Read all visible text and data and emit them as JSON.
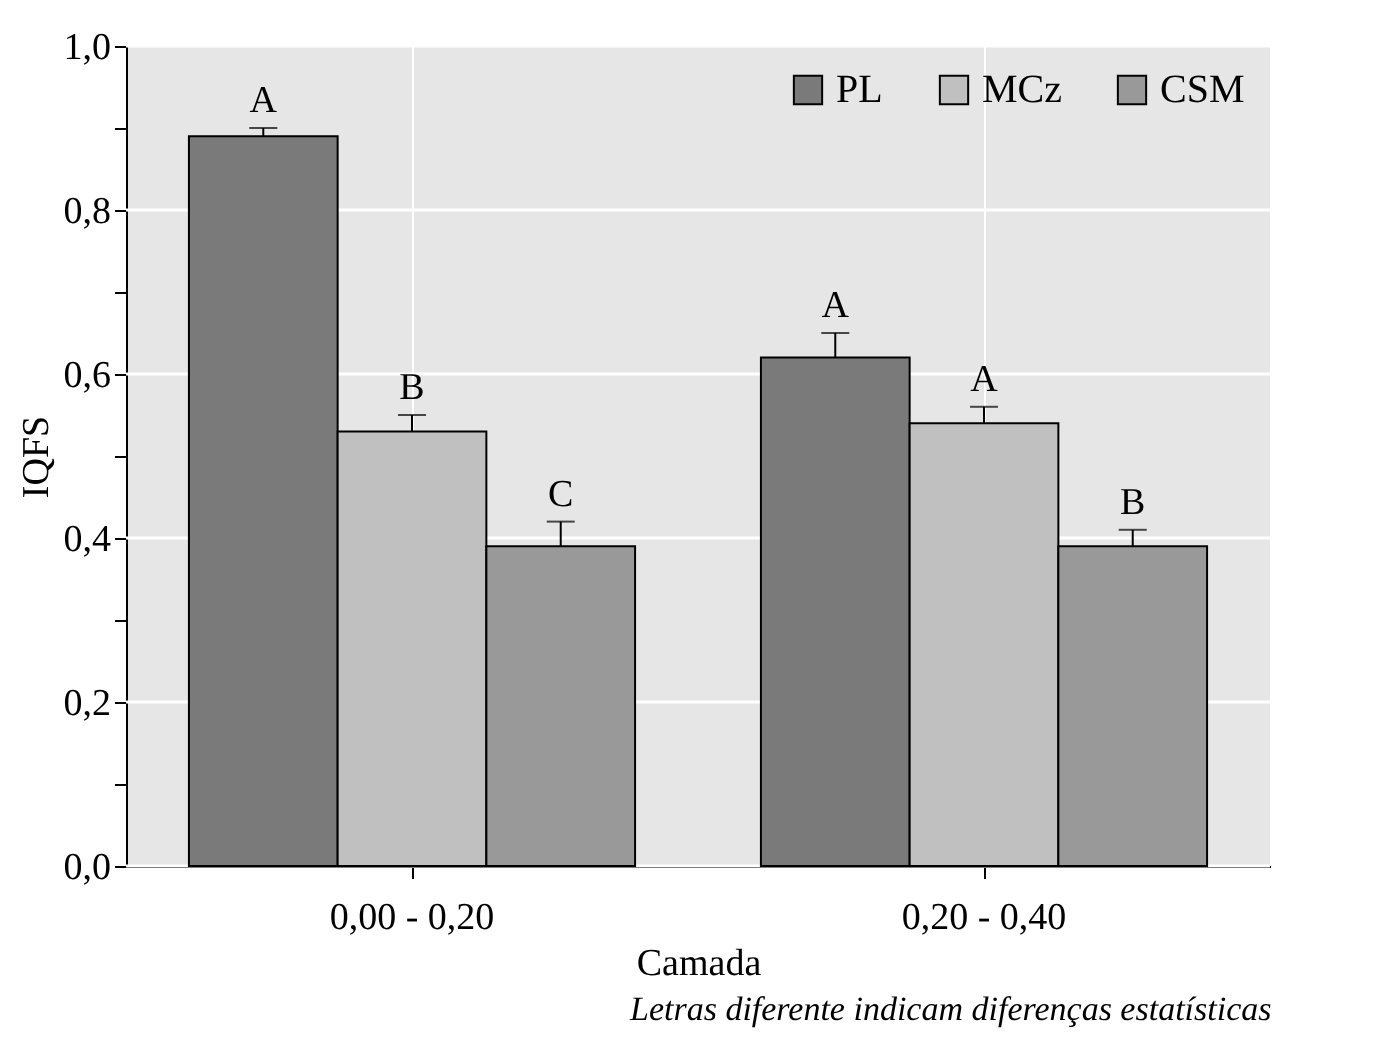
{
  "chart_data": {
    "type": "bar",
    "xlabel": "Camada",
    "ylabel": "IQFS",
    "categories": [
      "0,00 - 0,20",
      "0,20 - 0,40"
    ],
    "series": [
      {
        "name": "PL",
        "color": "#7a7a7a",
        "values": [
          0.89,
          0.62
        ],
        "errors": [
          [
            0.89,
            0.9
          ],
          [
            0.62,
            0.65
          ]
        ],
        "value_labels": [
          "A",
          "A"
        ]
      },
      {
        "name": "MCz",
        "color": "#c0c0c0",
        "values": [
          0.53,
          0.54
        ],
        "errors": [
          [
            0.53,
            0.55
          ],
          [
            0.54,
            0.56
          ]
        ],
        "value_labels": [
          "B",
          "A"
        ]
      },
      {
        "name": "CSM",
        "color": "#999999",
        "values": [
          0.39,
          0.39
        ],
        "errors": [
          [
            0.39,
            0.42
          ],
          [
            0.39,
            0.41
          ]
        ],
        "value_labels": [
          "C",
          "B"
        ]
      }
    ],
    "ylim": [
      0,
      1
    ],
    "yticks": [
      {
        "value": 0,
        "label": "0,0"
      },
      {
        "value": 0.1,
        "label": null
      },
      {
        "value": 0.2,
        "label": "0,2"
      },
      {
        "value": 0.3,
        "label": null
      },
      {
        "value": 0.4,
        "label": "0,4"
      },
      {
        "value": 0.5,
        "label": null
      },
      {
        "value": 0.6,
        "label": "0,6"
      },
      {
        "value": 0.7,
        "label": null
      },
      {
        "value": 0.8,
        "label": "0,8"
      },
      {
        "value": 0.9,
        "label": null
      },
      {
        "value": 1.0,
        "label": "1,0"
      }
    ],
    "grid": true,
    "legend": "top right",
    "annotations": [
      "Letras diferente indicam diferenças estatísticas"
    ]
  }
}
